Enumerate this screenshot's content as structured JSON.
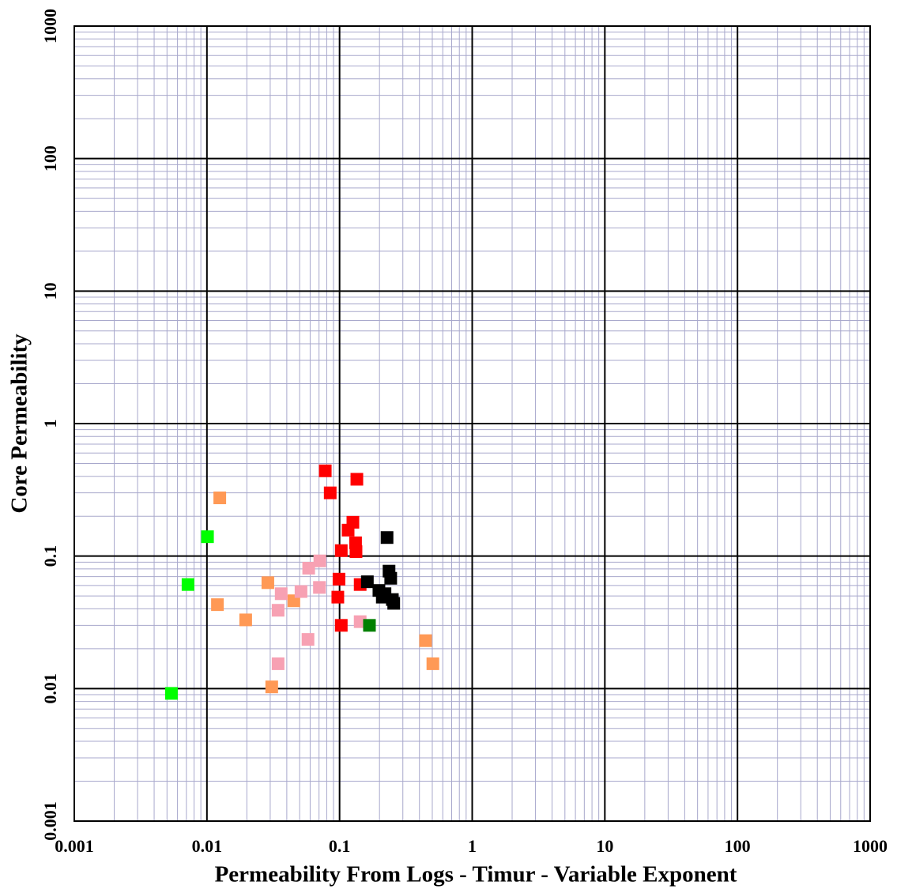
{
  "chart_data": {
    "type": "scatter",
    "x_label": "Permeability From Logs  -   Timur  - Variable Exponent",
    "y_label": "Core Permeability",
    "log_x": true,
    "log_y": true,
    "grid": true,
    "xlim": [
      0.001,
      1000
    ],
    "ylim": [
      0.001,
      1000
    ],
    "xticks": [
      0.001,
      0.01,
      0.1,
      1,
      10,
      100,
      1000
    ],
    "yticks": [
      0.001,
      0.01,
      0.1,
      1,
      10,
      100,
      1000
    ],
    "series": [
      {
        "color": "#ff0000",
        "x": [
          0.078,
          0.135,
          0.085,
          0.126,
          0.116,
          0.132,
          0.133,
          0.103,
          0.099,
          0.143,
          0.097,
          0.103
        ],
        "y": [
          0.44,
          0.38,
          0.3,
          0.18,
          0.157,
          0.126,
          0.108,
          0.11,
          0.067,
          0.061,
          0.049,
          0.03
        ]
      },
      {
        "color": "#000000",
        "x": [
          0.228,
          0.236,
          0.243,
          0.162,
          0.198,
          0.22,
          0.21,
          0.25,
          0.256
        ],
        "y": [
          0.138,
          0.077,
          0.068,
          0.064,
          0.055,
          0.052,
          0.049,
          0.047,
          0.044
        ]
      },
      {
        "color": "#ff9955",
        "x": [
          0.0125,
          0.0288,
          0.0452,
          0.012,
          0.0196,
          0.445,
          0.505,
          0.0308
        ],
        "y": [
          0.275,
          0.063,
          0.046,
          0.043,
          0.033,
          0.023,
          0.0154,
          0.0103
        ]
      },
      {
        "color": "#f7a1b3",
        "x": [
          0.071,
          0.0585,
          0.0705,
          0.0512,
          0.0363,
          0.0344,
          0.143,
          0.0578,
          0.0344
        ],
        "y": [
          0.092,
          0.081,
          0.058,
          0.054,
          0.052,
          0.039,
          0.032,
          0.0235,
          0.0154
        ]
      },
      {
        "color": "#00ff00",
        "x": [
          0.0101,
          0.0072,
          0.0054
        ],
        "y": [
          0.14,
          0.061,
          0.0092
        ]
      },
      {
        "color": "#008000",
        "x": [
          0.168
        ],
        "y": [
          0.03
        ]
      }
    ]
  }
}
